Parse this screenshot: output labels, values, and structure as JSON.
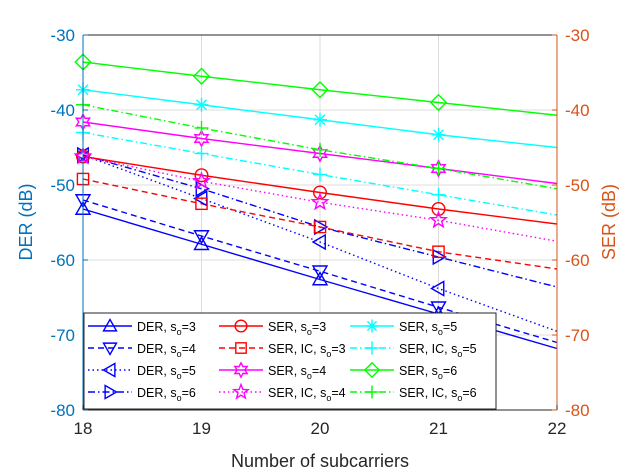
{
  "chart_data": {
    "type": "line",
    "title": "",
    "xlabel": "Number of subcarriers",
    "ylabel_left": "DER (dB)",
    "ylabel_right": "SER (dB)",
    "x": [
      18,
      19,
      20,
      21,
      22
    ],
    "xlim": [
      18,
      22
    ],
    "ylim_left": [
      -80,
      -30
    ],
    "ylim_right": [
      -80,
      -30
    ],
    "xticks": [
      "18",
      "19",
      "20",
      "21",
      "22"
    ],
    "yticks_left": [
      "-80",
      "-70",
      "-60",
      "-50",
      "-40",
      "-30"
    ],
    "yticks_right": [
      "-80",
      "-70",
      "-60",
      "-50",
      "-40",
      "-30"
    ],
    "grid": true,
    "legend_position": "bottom",
    "left_axis_color": "#0072BD",
    "right_axis_color": "#D95319",
    "series": [
      {
        "name": "DER, s_o=3",
        "base": "DER, s",
        "sub": "o",
        "suffix": "=3",
        "axis": "left",
        "color": "#0000FF",
        "dash": "solid",
        "marker": "triangle-up",
        "values": [
          -53.2,
          -57.9,
          -62.6,
          -67.2,
          -71.8
        ]
      },
      {
        "name": "DER, s_o=4",
        "base": "DER, s",
        "sub": "o",
        "suffix": "=4",
        "axis": "left",
        "color": "#0000FF",
        "dash": "dashed",
        "marker": "triangle-down",
        "values": [
          -52.0,
          -56.8,
          -61.5,
          -66.3,
          -71.0
        ]
      },
      {
        "name": "DER, s_o=5",
        "base": "DER, s",
        "sub": "o",
        "suffix": "=5",
        "axis": "left",
        "color": "#0000FF",
        "dash": "dotted",
        "marker": "triangle-left",
        "values": [
          -46.0,
          -51.8,
          -57.6,
          -63.8,
          -69.5
        ]
      },
      {
        "name": "DER, s_o=6",
        "base": "DER, s",
        "sub": "o",
        "suffix": "=6",
        "axis": "left",
        "color": "#0000FF",
        "dash": "dashdot",
        "marker": "triangle-right",
        "values": [
          -46.0,
          -50.5,
          -55.6,
          -59.6,
          -63.6
        ]
      },
      {
        "name": "SER, s_o=3",
        "base": "SER, s",
        "sub": "o",
        "suffix": "=3",
        "axis": "right",
        "color": "#FF0000",
        "dash": "solid",
        "marker": "circle",
        "values": [
          -46.2,
          -48.7,
          -51.0,
          -53.2,
          -55.2
        ]
      },
      {
        "name": "SER, IC, s_o=3",
        "base": "SER, IC, s",
        "sub": "o",
        "suffix": "=3",
        "axis": "right",
        "color": "#FF0000",
        "dash": "dashed",
        "marker": "square",
        "values": [
          -49.2,
          -52.5,
          -55.6,
          -58.9,
          -61.2
        ]
      },
      {
        "name": "SER, s_o=4",
        "base": "SER, s",
        "sub": "o",
        "suffix": "=4",
        "axis": "right",
        "color": "#FF00FF",
        "dash": "solid",
        "marker": "hexagram",
        "values": [
          -41.6,
          -43.8,
          -45.8,
          -47.8,
          -49.8
        ]
      },
      {
        "name": "SER, IC, s_o=4",
        "base": "SER, IC, s",
        "sub": "o",
        "suffix": "=4",
        "axis": "right",
        "color": "#FF00FF",
        "dash": "dotted",
        "marker": "pentagram",
        "values": [
          -46.2,
          -49.5,
          -52.3,
          -54.7,
          -57.5
        ]
      },
      {
        "name": "SER, s_o=5",
        "base": "SER, s",
        "sub": "o",
        "suffix": "=5",
        "axis": "right",
        "color": "#00FFFF",
        "dash": "solid",
        "marker": "asterisk",
        "values": [
          -37.3,
          -39.3,
          -41.3,
          -43.3,
          -45.0
        ]
      },
      {
        "name": "SER, IC, s_o=5",
        "base": "SER, IC, s",
        "sub": "o",
        "suffix": "=5",
        "axis": "right",
        "color": "#00FFFF",
        "dash": "dashdot",
        "marker": "plus",
        "values": [
          -43.0,
          -45.8,
          -48.6,
          -51.3,
          -54.0
        ]
      },
      {
        "name": "SER, s_o=6",
        "base": "SER, s",
        "sub": "o",
        "suffix": "=6",
        "axis": "right",
        "color": "#00FF00",
        "dash": "solid",
        "marker": "diamond",
        "values": [
          -33.6,
          -35.5,
          -37.3,
          -39.0,
          -40.7
        ]
      },
      {
        "name": "SER, IC, s_o=6",
        "base": "SER, IC, s",
        "sub": "o",
        "suffix": "=6",
        "axis": "right",
        "color": "#00FF00",
        "dash": "dashdot",
        "marker": "plus",
        "values": [
          -39.3,
          -42.4,
          -45.3,
          -47.8,
          -50.5
        ]
      }
    ]
  }
}
